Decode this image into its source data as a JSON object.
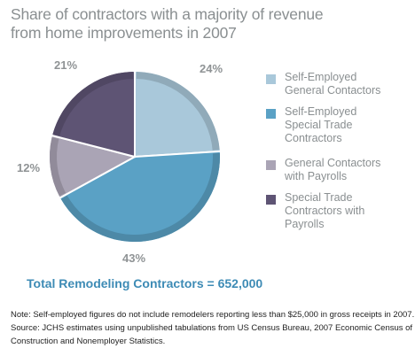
{
  "chart_data": {
    "type": "pie",
    "title": "Share of contractors with a majority of revenue from home improvements in 2007",
    "title_lines": [
      "Share of contractors with a majority of revenue",
      "from home improvements in 2007"
    ],
    "slices": [
      {
        "name": "Self-Employed General Contactors",
        "label_lines": "Self-Employed\nGeneral Contactors",
        "value": 24,
        "label": "24%",
        "color": "#a9c8da"
      },
      {
        "name": "Self-Employed Special Trade Contractors",
        "label_lines": "Self-Employed\nSpecial Trade\nContractors",
        "value": 43,
        "label": "43%",
        "color": "#5aa1c5"
      },
      {
        "name": "General Contactors with Payrolls",
        "label_lines": "General Contactors\nwith Payrolls",
        "value": 12,
        "label": "12%",
        "color": "#aaa4b5"
      },
      {
        "name": "Special Trade Contractors with Payrolls",
        "label_lines": "Special Trade\nContractors with\nPayrolls",
        "value": 21,
        "label": "21%",
        "color": "#5e5474"
      }
    ],
    "legend_placement": "right"
  },
  "total_label": "Total Remodeling Contractors = 652,000",
  "notes": [
    "Note: Self-employed figures do not include remodelers reporting less than $25,000 in gross receipts in 2007.",
    "Source: JCHS estimates using unpublished tabulations from US Census Bureau, 2007 Economic Census of",
    "Construction and Nonemployer Statistics."
  ]
}
